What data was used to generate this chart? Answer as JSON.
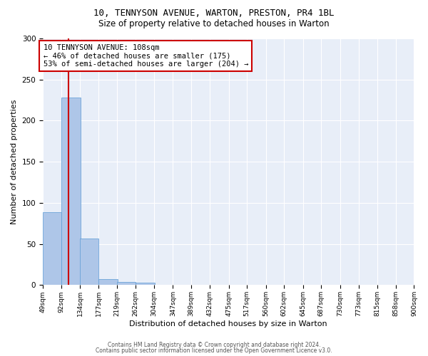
{
  "title1": "10, TENNYSON AVENUE, WARTON, PRESTON, PR4 1BL",
  "title2": "Size of property relative to detached houses in Warton",
  "xlabel": "Distribution of detached houses by size in Warton",
  "ylabel": "Number of detached properties",
  "bin_edges": [
    49,
    92,
    134,
    177,
    219,
    262,
    304,
    347,
    389,
    432,
    475,
    517,
    560,
    602,
    645,
    687,
    730,
    773,
    815,
    858,
    900
  ],
  "bin_labels": [
    "49sqm",
    "92sqm",
    "134sqm",
    "177sqm",
    "219sqm",
    "262sqm",
    "304sqm",
    "347sqm",
    "389sqm",
    "432sqm",
    "475sqm",
    "517sqm",
    "560sqm",
    "602sqm",
    "645sqm",
    "687sqm",
    "730sqm",
    "773sqm",
    "815sqm",
    "858sqm",
    "900sqm"
  ],
  "counts": [
    89,
    228,
    57,
    7,
    4,
    3,
    0,
    0,
    0,
    0,
    0,
    0,
    0,
    0,
    0,
    0,
    0,
    0,
    0,
    0
  ],
  "bar_color": "#aec6e8",
  "bar_edgecolor": "#5b9bd5",
  "property_size": 108,
  "vline_color": "#cc0000",
  "annotation_line1": "10 TENNYSON AVENUE: 108sqm",
  "annotation_line2": "← 46% of detached houses are smaller (175)",
  "annotation_line3": "53% of semi-detached houses are larger (204) →",
  "annotation_box_color": "#ffffff",
  "annotation_box_edgecolor": "#cc0000",
  "footer_text1": "Contains HM Land Registry data © Crown copyright and database right 2024.",
  "footer_text2": "Contains public sector information licensed under the Open Government Licence v3.0.",
  "ylim": [
    0,
    300
  ],
  "yticks": [
    0,
    50,
    100,
    150,
    200,
    250,
    300
  ],
  "bg_color": "#e8eef8",
  "title1_fontsize": 9,
  "title2_fontsize": 8.5,
  "ylabel_fontsize": 8,
  "xlabel_fontsize": 8,
  "annotation_fontsize": 7.5,
  "footer_fontsize": 5.5
}
